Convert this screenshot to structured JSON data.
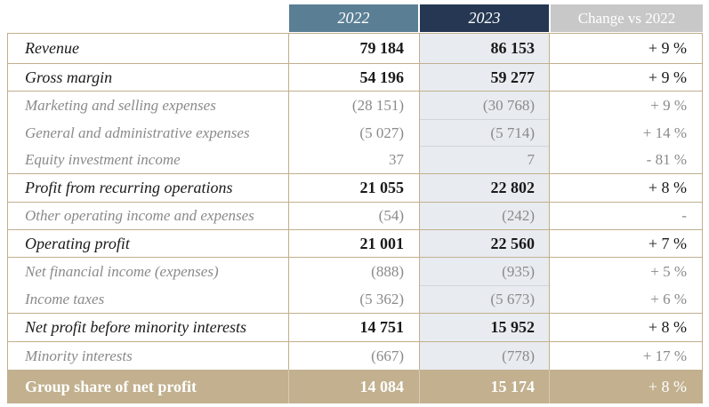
{
  "header": {
    "col_2022": "2022",
    "col_2023": "2023",
    "col_change": "Change vs 2022"
  },
  "rows": [
    {
      "label": "Revenue",
      "v2022": "79 184",
      "v2023": "86 153",
      "change": "+ 9 %",
      "type": "main"
    },
    {
      "label": "Gross margin",
      "v2022": "54 196",
      "v2023": "59 277",
      "change": "+ 9 %",
      "type": "main"
    },
    {
      "label": "Marketing and selling expenses",
      "v2022": "(28 151)",
      "v2023": "(30 768)",
      "change": "+ 9 %",
      "type": "sub"
    },
    {
      "label": "General and administrative expenses",
      "v2022": "(5 027)",
      "v2023": "(5 714)",
      "change": "+ 14 %",
      "type": "sub"
    },
    {
      "label": "Equity investment income",
      "v2022": "37",
      "v2023": "7",
      "change": "- 81 %",
      "type": "sub"
    },
    {
      "label": "Profit from recurring operations",
      "v2022": "21 055",
      "v2023": "22 802",
      "change": "+ 8 %",
      "type": "main"
    },
    {
      "label": "Other operating income and expenses",
      "v2022": "(54)",
      "v2023": "(242)",
      "change": "-",
      "type": "sub"
    },
    {
      "label": "Operating profit",
      "v2022": "21 001",
      "v2023": "22 560",
      "change": "+ 7 %",
      "type": "main"
    },
    {
      "label": "Net financial income (expenses)",
      "v2022": "(888)",
      "v2023": "(935)",
      "change": "+ 5 %",
      "type": "sub"
    },
    {
      "label": "Income taxes",
      "v2022": "(5 362)",
      "v2023": "(5 673)",
      "change": "+ 6 %",
      "type": "sub"
    },
    {
      "label": "Net profit before minority interests",
      "v2022": "14 751",
      "v2023": "15 952",
      "change": "+ 8 %",
      "type": "main"
    },
    {
      "label": "Minority interests",
      "v2022": "(667)",
      "v2023": "(778)",
      "change": "+ 17 %",
      "type": "sub"
    }
  ],
  "total": {
    "label": "Group share of net profit",
    "v2022": "14 084",
    "v2023": "15 174",
    "change": "+ 8 %"
  },
  "colors": {
    "header_2022": "#5a7f95",
    "header_2023": "#253752",
    "header_change": "#c8c8c8",
    "accent_gold": "#c2b08e"
  }
}
